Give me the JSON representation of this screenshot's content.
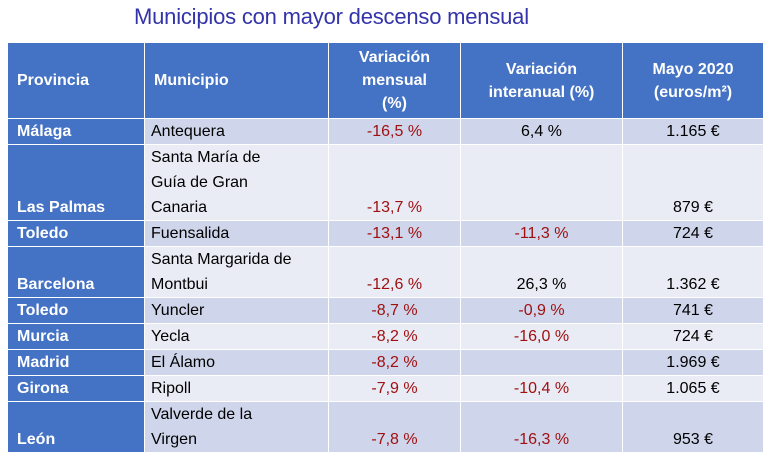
{
  "title": "Municipios con mayor descenso mensual",
  "headers": {
    "provincia": "Provincia",
    "municipio": "Municipio",
    "var_mensual": [
      "Variación",
      "mensual",
      "(%)"
    ],
    "var_interanual": [
      "Variación",
      "interanual (%)"
    ],
    "mayo": [
      "Mayo 2020",
      "(euros/m²)"
    ]
  },
  "rows": [
    {
      "provincia": "Málaga",
      "municipio": "Antequera",
      "mensual": "-16,5 %",
      "interanual": "6,4 %",
      "precio": "1.165 €"
    },
    {
      "provincia": "Las Palmas",
      "municipio": "Santa María de Guía de Gran Canaria",
      "mensual": "-13,7 %",
      "interanual": "",
      "precio": "879 €"
    },
    {
      "provincia": "Toledo",
      "municipio": "Fuensalida",
      "mensual": "-13,1 %",
      "interanual": "-11,3 %",
      "precio": "724 €"
    },
    {
      "provincia": "Barcelona",
      "municipio": "Santa Margarida de Montbui",
      "mensual": "-12,6 %",
      "interanual": "26,3 %",
      "precio": "1.362 €"
    },
    {
      "provincia": "Toledo",
      "municipio": "Yuncler",
      "mensual": "-8,7 %",
      "interanual": "-0,9 %",
      "precio": "741 €"
    },
    {
      "provincia": "Murcia",
      "municipio": "Yecla",
      "mensual": "-8,2 %",
      "interanual": "-16,0 %",
      "precio": "724 €"
    },
    {
      "provincia": "Madrid",
      "municipio": "El Álamo",
      "mensual": "-8,2 %",
      "interanual": "",
      "precio": "1.969 €"
    },
    {
      "provincia": "Girona",
      "municipio": "Ripoll",
      "mensual": "-7,9 %",
      "interanual": "-10,4 %",
      "precio": "1.065 €"
    },
    {
      "provincia": "León",
      "municipio": "Valverde de la Virgen",
      "mensual": "-7,8 %",
      "interanual": "-16,3 %",
      "precio": "953 €"
    }
  ],
  "colors": {
    "header_bg": "#4472c4",
    "row_bg": "#cfd5ea",
    "row_alt_bg": "#e9ebf5",
    "negative_text": "#a01010",
    "title_text": "#3333aa"
  }
}
